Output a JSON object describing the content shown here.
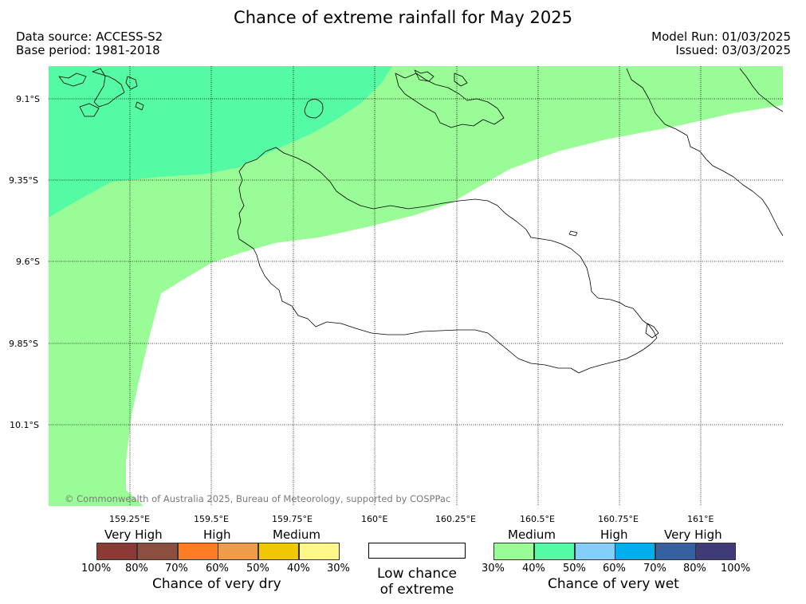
{
  "title": "Chance of extreme rainfall for May 2025",
  "header": {
    "data_source": "Data source: ACCESS-S2",
    "base_period": "Base period: 1981-2018",
    "model_run": "Model Run: 01/03/2025",
    "issued": "Issued: 03/03/2025"
  },
  "map": {
    "lat_labels": [
      "9.1°S",
      "9.35°S",
      "9.6°S",
      "9.85°S",
      "10.1°S"
    ],
    "lon_labels": [
      "159.25°E",
      "159.5°E",
      "159.75°E",
      "160°E",
      "160.25°E",
      "160.5°E",
      "160.75°E",
      "161°E"
    ],
    "fill_colors": {
      "wet_40_50": "#55fba4",
      "wet_30_40": "#9afc96"
    },
    "credit": "© Commonwealth of Australia 2025, Bureau of Meteorology, supported by COSPPac"
  },
  "legend": {
    "dry": {
      "categories": [
        "Very High",
        "High",
        "Medium"
      ],
      "ticks": [
        "100%",
        "80%",
        "70%",
        "60%",
        "50%",
        "40%",
        "30%"
      ],
      "colors": [
        "#8b3a35",
        "#8c4e3e",
        "#fc7d24",
        "#ef9c4a",
        "#f0c703",
        "#fef88b"
      ],
      "caption": "Chance of very dry"
    },
    "neutral": {
      "line1": "Low chance",
      "line2": "of extreme",
      "color": "#ffffff"
    },
    "wet": {
      "categories": [
        "Medium",
        "High",
        "Very High"
      ],
      "ticks": [
        "30%",
        "40%",
        "50%",
        "60%",
        "70%",
        "80%",
        "100%"
      ],
      "colors": [
        "#9afc96",
        "#55fba4",
        "#84cefc",
        "#00aeee",
        "#3660a0",
        "#3f3b76"
      ],
      "caption": "Chance of very wet"
    }
  }
}
